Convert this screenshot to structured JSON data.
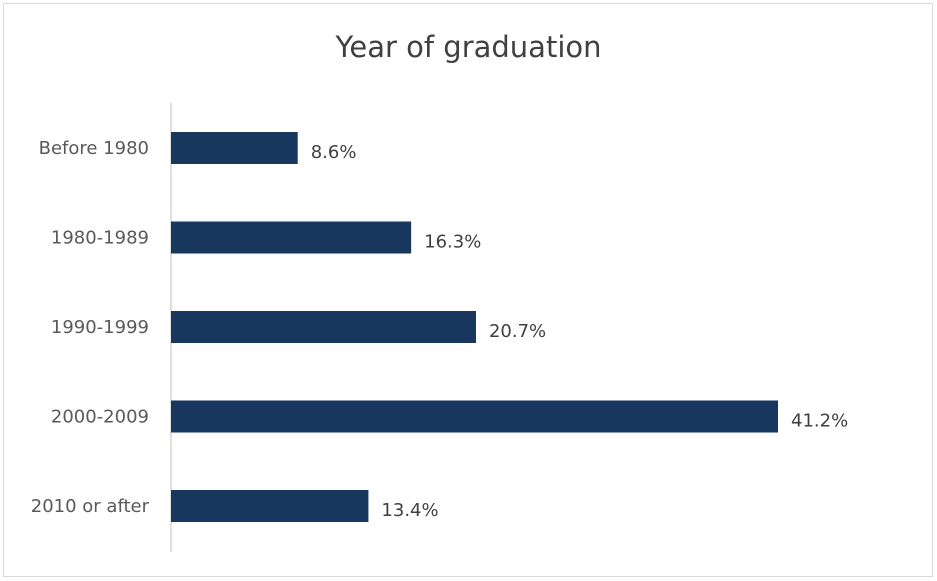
{
  "chart_data": {
    "type": "bar",
    "orientation": "horizontal",
    "title": "Year of graduation",
    "categories": [
      "Before 1980",
      "1980-1989",
      "1990-1999",
      "2000-2009",
      "2010 or after"
    ],
    "values": [
      8.6,
      16.3,
      20.7,
      41.2,
      13.4
    ],
    "data_labels": [
      "8.6%",
      "16.3%",
      "20.7%",
      "41.2%",
      "13.4%"
    ],
    "value_unit": "%",
    "xlabel": "",
    "ylabel": "",
    "xlim": [
      0,
      41.2
    ],
    "grid": false,
    "legend": "none",
    "bar_color": "#17375e"
  }
}
